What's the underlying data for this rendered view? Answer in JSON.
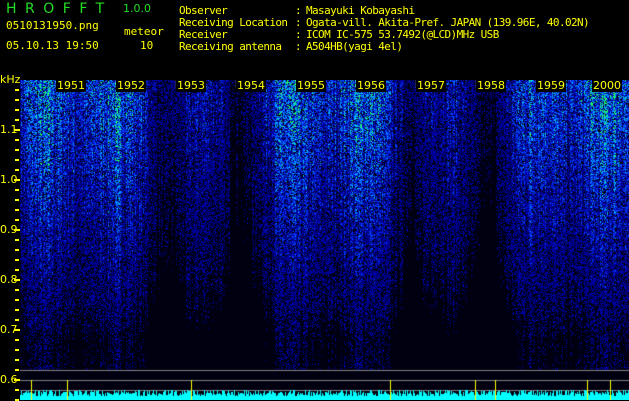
{
  "header": {
    "app_name": "HROFFT",
    "version": "1.0.0",
    "filename": "0510131950.png",
    "datetime": "05.10.13 19:50",
    "meteor_label": "meteor",
    "meteor_count": "10"
  },
  "info": [
    {
      "label": "Observer",
      "value": "Masayuki Kobayashi"
    },
    {
      "label": "Receiving Location",
      "value": "Ogata-vill. Akita-Pref. JAPAN (139.96E, 40.02N)"
    },
    {
      "label": "Receiver",
      "value": "ICOM IC-575 53.7492(@LCD)MHz USB"
    },
    {
      "label": "Receiving antenna",
      "value": "A504HB(yagi 4el)"
    }
  ],
  "spectrogram": {
    "y_unit": "kHz",
    "y_labels": [
      "1.1",
      "1.0",
      "0.9",
      "0.8",
      "0.7",
      "0.6"
    ],
    "time_labels": [
      "1951",
      "1952",
      "1953",
      "1954",
      "1955",
      "1956",
      "1957",
      "1958",
      "1959",
      "2000"
    ],
    "colors": {
      "background": "#000010",
      "low": "#0000cc",
      "mid": "#00a0ff",
      "high": "#22ff44",
      "histogram": "#00ffff",
      "text": "#ffff00"
    }
  }
}
